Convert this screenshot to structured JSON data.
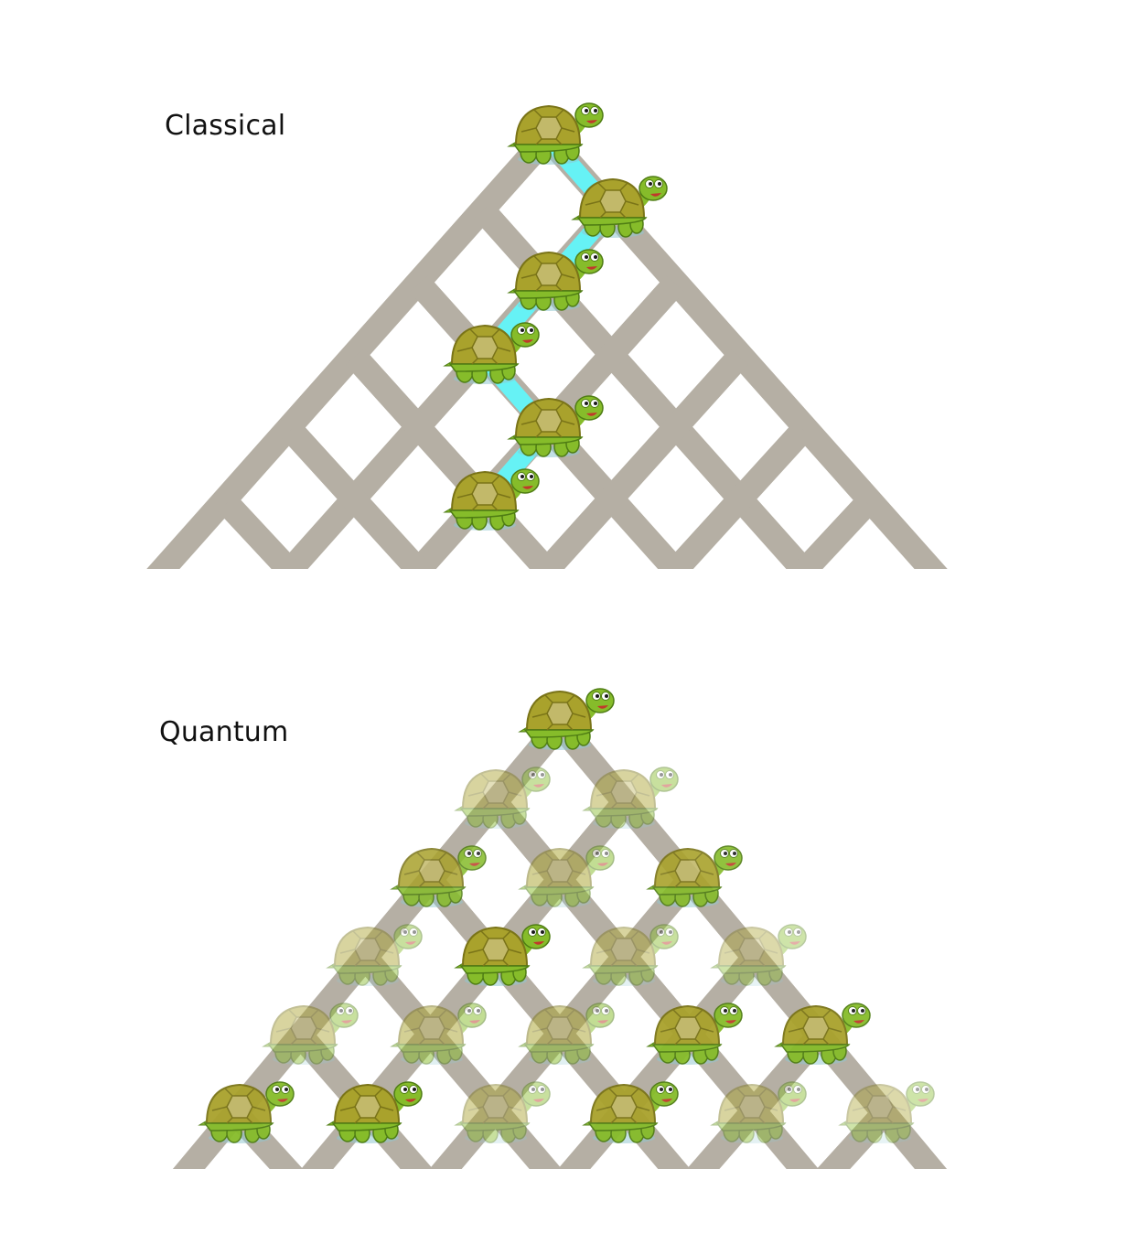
{
  "panels": {
    "classical": {
      "title": "Classical",
      "walk": [
        [
          0,
          0
        ],
        [
          1,
          1
        ],
        [
          2,
          0
        ],
        [
          3,
          -1
        ],
        [
          4,
          0
        ],
        [
          5,
          -1
        ]
      ],
      "path_color": "#66f2f5"
    },
    "quantum": {
      "title": "Quantum",
      "turtles": [
        {
          "row": 0,
          "col": 0,
          "opacity": 1
        },
        {
          "row": 1,
          "col": -1,
          "opacity": 0.45
        },
        {
          "row": 1,
          "col": 1,
          "opacity": 0.45
        },
        {
          "row": 2,
          "col": -2,
          "opacity": 0.85
        },
        {
          "row": 2,
          "col": 0,
          "opacity": 0.5
        },
        {
          "row": 2,
          "col": 2,
          "opacity": 0.9
        },
        {
          "row": 3,
          "col": -3,
          "opacity": 0.45
        },
        {
          "row": 3,
          "col": -1,
          "opacity": 1
        },
        {
          "row": 3,
          "col": 1,
          "opacity": 0.45
        },
        {
          "row": 3,
          "col": 3,
          "opacity": 0.4
        },
        {
          "row": 4,
          "col": -4,
          "opacity": 0.45
        },
        {
          "row": 4,
          "col": -2,
          "opacity": 0.5
        },
        {
          "row": 4,
          "col": 0,
          "opacity": 0.5
        },
        {
          "row": 4,
          "col": 2,
          "opacity": 0.95
        },
        {
          "row": 4,
          "col": 4,
          "opacity": 0.95
        },
        {
          "row": 5,
          "col": -5,
          "opacity": 0.95
        },
        {
          "row": 5,
          "col": -3,
          "opacity": 1
        },
        {
          "row": 5,
          "col": -1,
          "opacity": 0.45
        },
        {
          "row": 5,
          "col": 1,
          "opacity": 0.95
        },
        {
          "row": 5,
          "col": 3,
          "opacity": 0.45
        },
        {
          "row": 5,
          "col": 5,
          "opacity": 0.4
        }
      ]
    }
  },
  "colors": {
    "lattice": "#b5afa4",
    "background": "#ffffff",
    "shell": "#a9a22c",
    "shell_dark": "#7a7418",
    "shell_plate": "#c2b96a",
    "skin": "#86bc2a",
    "skin_dark": "#4f7d14",
    "mouth": "#c0392b"
  }
}
